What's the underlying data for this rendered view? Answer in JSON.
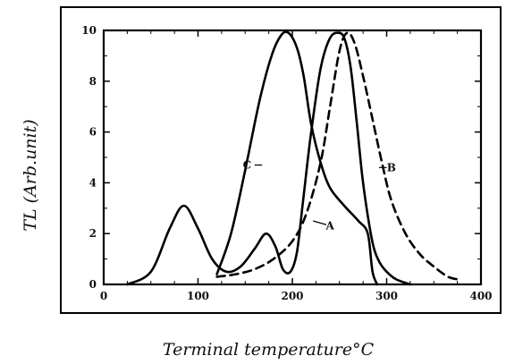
{
  "chart_data": {
    "type": "line",
    "title": "",
    "xlabel": "Terminal temperature°C",
    "ylabel": "TL (Arb.unit)",
    "xlim": [
      0,
      400
    ],
    "ylim": [
      0,
      10
    ],
    "x_ticks": [
      0,
      100,
      200,
      300,
      400
    ],
    "y_ticks": [
      0,
      2,
      4,
      6,
      8,
      10
    ],
    "grid": false,
    "legend": "none",
    "series": [
      {
        "name": "A",
        "style": "solid",
        "x": [
          25,
          50,
          70,
          85,
          100,
          115,
          130,
          145,
          160,
          172,
          182,
          190,
          198,
          205,
          212,
          220,
          230,
          240,
          250,
          256,
          262,
          268,
          274,
          280,
          286,
          292,
          300,
          310,
          325
        ],
        "y": [
          0,
          0.5,
          2.2,
          3.1,
          2.2,
          1.0,
          0.5,
          0.7,
          1.4,
          2.0,
          1.5,
          0.6,
          0.5,
          1.3,
          3.5,
          6.0,
          8.5,
          9.7,
          9.9,
          9.6,
          8.5,
          6.5,
          4.3,
          2.7,
          1.5,
          0.9,
          0.5,
          0.2,
          0
        ]
      },
      {
        "name": "B",
        "style": "dashed",
        "x": [
          120,
          140,
          160,
          180,
          200,
          215,
          230,
          240,
          250,
          258,
          266,
          275,
          285,
          295,
          305,
          320,
          335,
          350,
          365,
          375
        ],
        "y": [
          0.3,
          0.4,
          0.6,
          1.0,
          1.7,
          2.8,
          4.8,
          7.0,
          9.2,
          9.9,
          9.5,
          8.2,
          6.5,
          4.8,
          3.3,
          2.0,
          1.2,
          0.7,
          0.3,
          0.2
        ]
      },
      {
        "name": "C",
        "style": "solid",
        "x": [
          120,
          135,
          150,
          165,
          178,
          188,
          196,
          205,
          212,
          220,
          230,
          240,
          255,
          270,
          280,
          285,
          290
        ],
        "y": [
          0.4,
          2.0,
          4.5,
          7.2,
          9.0,
          9.8,
          9.9,
          9.3,
          8.2,
          6.3,
          4.8,
          3.8,
          3.1,
          2.5,
          2.0,
          0.5,
          0
        ]
      }
    ],
    "annotations": [
      {
        "text": "A",
        "x": 240,
        "y": 2.3
      },
      {
        "text": "B",
        "x": 305,
        "y": 4.6
      },
      {
        "text": "C",
        "x": 152,
        "y": 4.7
      }
    ]
  }
}
